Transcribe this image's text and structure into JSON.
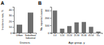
{
  "chart_data": [
    {
      "type": "bar",
      "title": "A",
      "categories": [
        "Urban",
        "Suburban/\nIndustrial"
      ],
      "values": [
        14,
        35
      ],
      "color": "#6e6e6e",
      "xlabel": "Districts",
      "ylabel": "Incidence rate, %",
      "ylim": [
        0,
        45
      ],
      "yticks": [
        0,
        10,
        20,
        30,
        40
      ]
    },
    {
      "type": "bar",
      "title": "B",
      "categories": [
        "0-4",
        "5-14",
        "15-24",
        "25-34",
        "35-44",
        "45-54",
        "55+"
      ],
      "values": [
        300,
        55,
        90,
        140,
        145,
        80,
        15
      ],
      "color": "#6e6e6e",
      "xlabel": "Age group, y",
      "ylabel": "No. reported cases",
      "ylim": [
        0,
        350
      ],
      "yticks": [
        0,
        100,
        200,
        300
      ]
    }
  ]
}
